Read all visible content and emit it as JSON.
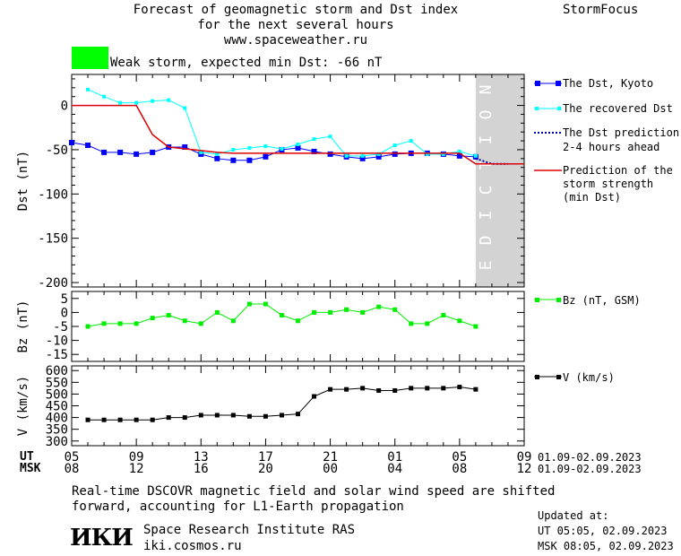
{
  "header": {
    "title_lines": [
      "Forecast of geomagnetic storm and Dst index",
      "for the next several hours",
      "www.spaceweather.ru"
    ],
    "brand": "StormFocus",
    "storm_color": "#00ff00",
    "storm_label": "Weak storm, expected min Dst: -66 nT"
  },
  "prediction_band_label": "PREDICTION",
  "colors": {
    "dst_kyoto": "#0000ff",
    "dst_recovered": "#00ffff",
    "dst_prediction": "#0000aa",
    "storm_strength": "#dd0000",
    "bz": "#00ee00",
    "v": "#000000",
    "prediction_band": "#d3d3d3"
  },
  "chart_data": [
    {
      "type": "line",
      "name": "dst-panel",
      "ylabel": "Dst (nT)",
      "ylim": [
        -205,
        35
      ],
      "yticks": [
        0,
        -50,
        -100,
        -150,
        -200
      ],
      "xlim": [
        5,
        33
      ],
      "prediction_start": 30,
      "legend": [
        {
          "label": "The Dst, Kyoto"
        },
        {
          "label": "The recovered Dst"
        },
        {
          "label": "The Dst prediction",
          "label2": "2-4 hours ahead"
        },
        {
          "label": "Prediction of the",
          "label2": "storm strength",
          "label3": "(min Dst)"
        }
      ],
      "series": [
        {
          "key": "kyoto",
          "x": [
            5,
            6,
            7,
            8,
            9,
            10,
            11,
            12,
            13,
            14,
            15,
            16,
            17,
            18,
            19,
            20,
            21,
            22,
            23,
            24,
            25,
            26,
            27,
            28,
            29,
            30
          ],
          "y": [
            -42,
            -45,
            -53,
            -53,
            -55,
            -53,
            -47,
            -47,
            -55,
            -60,
            -62,
            -62,
            -58,
            -50,
            -48,
            -52,
            -55,
            -58,
            -60,
            -58,
            -55,
            -54,
            -54,
            -55,
            -57,
            -58
          ]
        },
        {
          "key": "recovered",
          "x": [
            6,
            7,
            8,
            9,
            10,
            11,
            12,
            13,
            14,
            15,
            16,
            17,
            18,
            19,
            20,
            21,
            22,
            23,
            24,
            25,
            26,
            27,
            28,
            29,
            30
          ],
          "y": [
            18,
            10,
            3,
            3,
            5,
            6,
            -3,
            -53,
            -55,
            -50,
            -48,
            -46,
            -49,
            -44,
            -38,
            -35,
            -57,
            -57,
            -55,
            -45,
            -40,
            -55,
            -55,
            -52,
            -57
          ]
        },
        {
          "key": "prediction",
          "x": [
            30,
            31,
            32
          ],
          "y": [
            -60,
            -66,
            -66
          ]
        },
        {
          "key": "strength",
          "x": [
            5,
            9,
            10,
            11,
            13,
            14,
            15,
            16,
            17,
            18,
            19,
            20,
            21,
            22,
            23,
            24,
            25,
            26,
            27,
            28,
            29,
            30,
            31,
            32,
            33
          ],
          "y": [
            0,
            0,
            -33,
            -47,
            -51,
            -53,
            -54,
            -54,
            -54,
            -54,
            -54,
            -54,
            -54,
            -54,
            -54,
            -54,
            -54,
            -54,
            -54,
            -54,
            -54,
            -66,
            -66,
            -66,
            -66
          ]
        }
      ]
    },
    {
      "type": "line",
      "name": "bz-panel",
      "ylabel": "Bz (nT)",
      "ylim": [
        -17.5,
        7.5
      ],
      "yticks": [
        5,
        0,
        -5,
        -10,
        -15
      ],
      "legend": [
        {
          "label": "Bz (nT, GSM)"
        }
      ],
      "series": [
        {
          "key": "bz",
          "x": [
            6,
            7,
            8,
            9,
            10,
            11,
            12,
            13,
            14,
            15,
            16,
            17,
            18,
            19,
            20,
            21,
            22,
            23,
            24,
            25,
            26,
            27,
            28,
            29,
            30
          ],
          "y": [
            -5,
            -4,
            -4,
            -4,
            -2,
            -1,
            -3,
            -4,
            0,
            -3,
            3,
            3,
            -1,
            -3,
            0,
            0,
            1,
            0,
            2,
            1,
            -4,
            -4,
            -1,
            -3,
            -5
          ]
        }
      ]
    },
    {
      "type": "line",
      "name": "v-panel",
      "ylabel": "V (km/s)",
      "ylim": [
        280,
        620
      ],
      "yticks": [
        600,
        550,
        500,
        450,
        400,
        350,
        300
      ],
      "legend": [
        {
          "label": "V (km/s)"
        }
      ],
      "series": [
        {
          "key": "v",
          "x": [
            6,
            7,
            8,
            9,
            10,
            11,
            12,
            13,
            14,
            15,
            16,
            17,
            18,
            19,
            20,
            21,
            22,
            23,
            24,
            25,
            26,
            27,
            28,
            29,
            30
          ],
          "y": [
            390,
            390,
            390,
            390,
            390,
            400,
            400,
            410,
            410,
            410,
            405,
            405,
            410,
            415,
            490,
            520,
            520,
            525,
            515,
            515,
            525,
            525,
            525,
            530,
            520
          ]
        }
      ]
    }
  ],
  "xaxis": {
    "ut_label": "UT",
    "msk_label": "MSK",
    "ut_ticks": [
      "05",
      "09",
      "13",
      "17",
      "21",
      "01",
      "05",
      "09"
    ],
    "msk_ticks": [
      "08",
      "12",
      "16",
      "20",
      "00",
      "04",
      "08",
      "12"
    ],
    "ut_range": "01.09-02.09.2023",
    "msk_range": "01.09-02.09.2023"
  },
  "footer": {
    "note_line1": "Real-time DSCOVR magnetic field and solar wind speed are shifted",
    "note_line2": "forward, accounting for L1-Earth propagation",
    "logo_text": "ИКИ",
    "institute": "Space Research Institute RAS",
    "site": "iki.cosmos.ru",
    "updated_label": "Updated at:",
    "updated_ut": "UT   05:05, 02.09.2023",
    "updated_msk": "MSK 08:05, 02.09.2023"
  }
}
